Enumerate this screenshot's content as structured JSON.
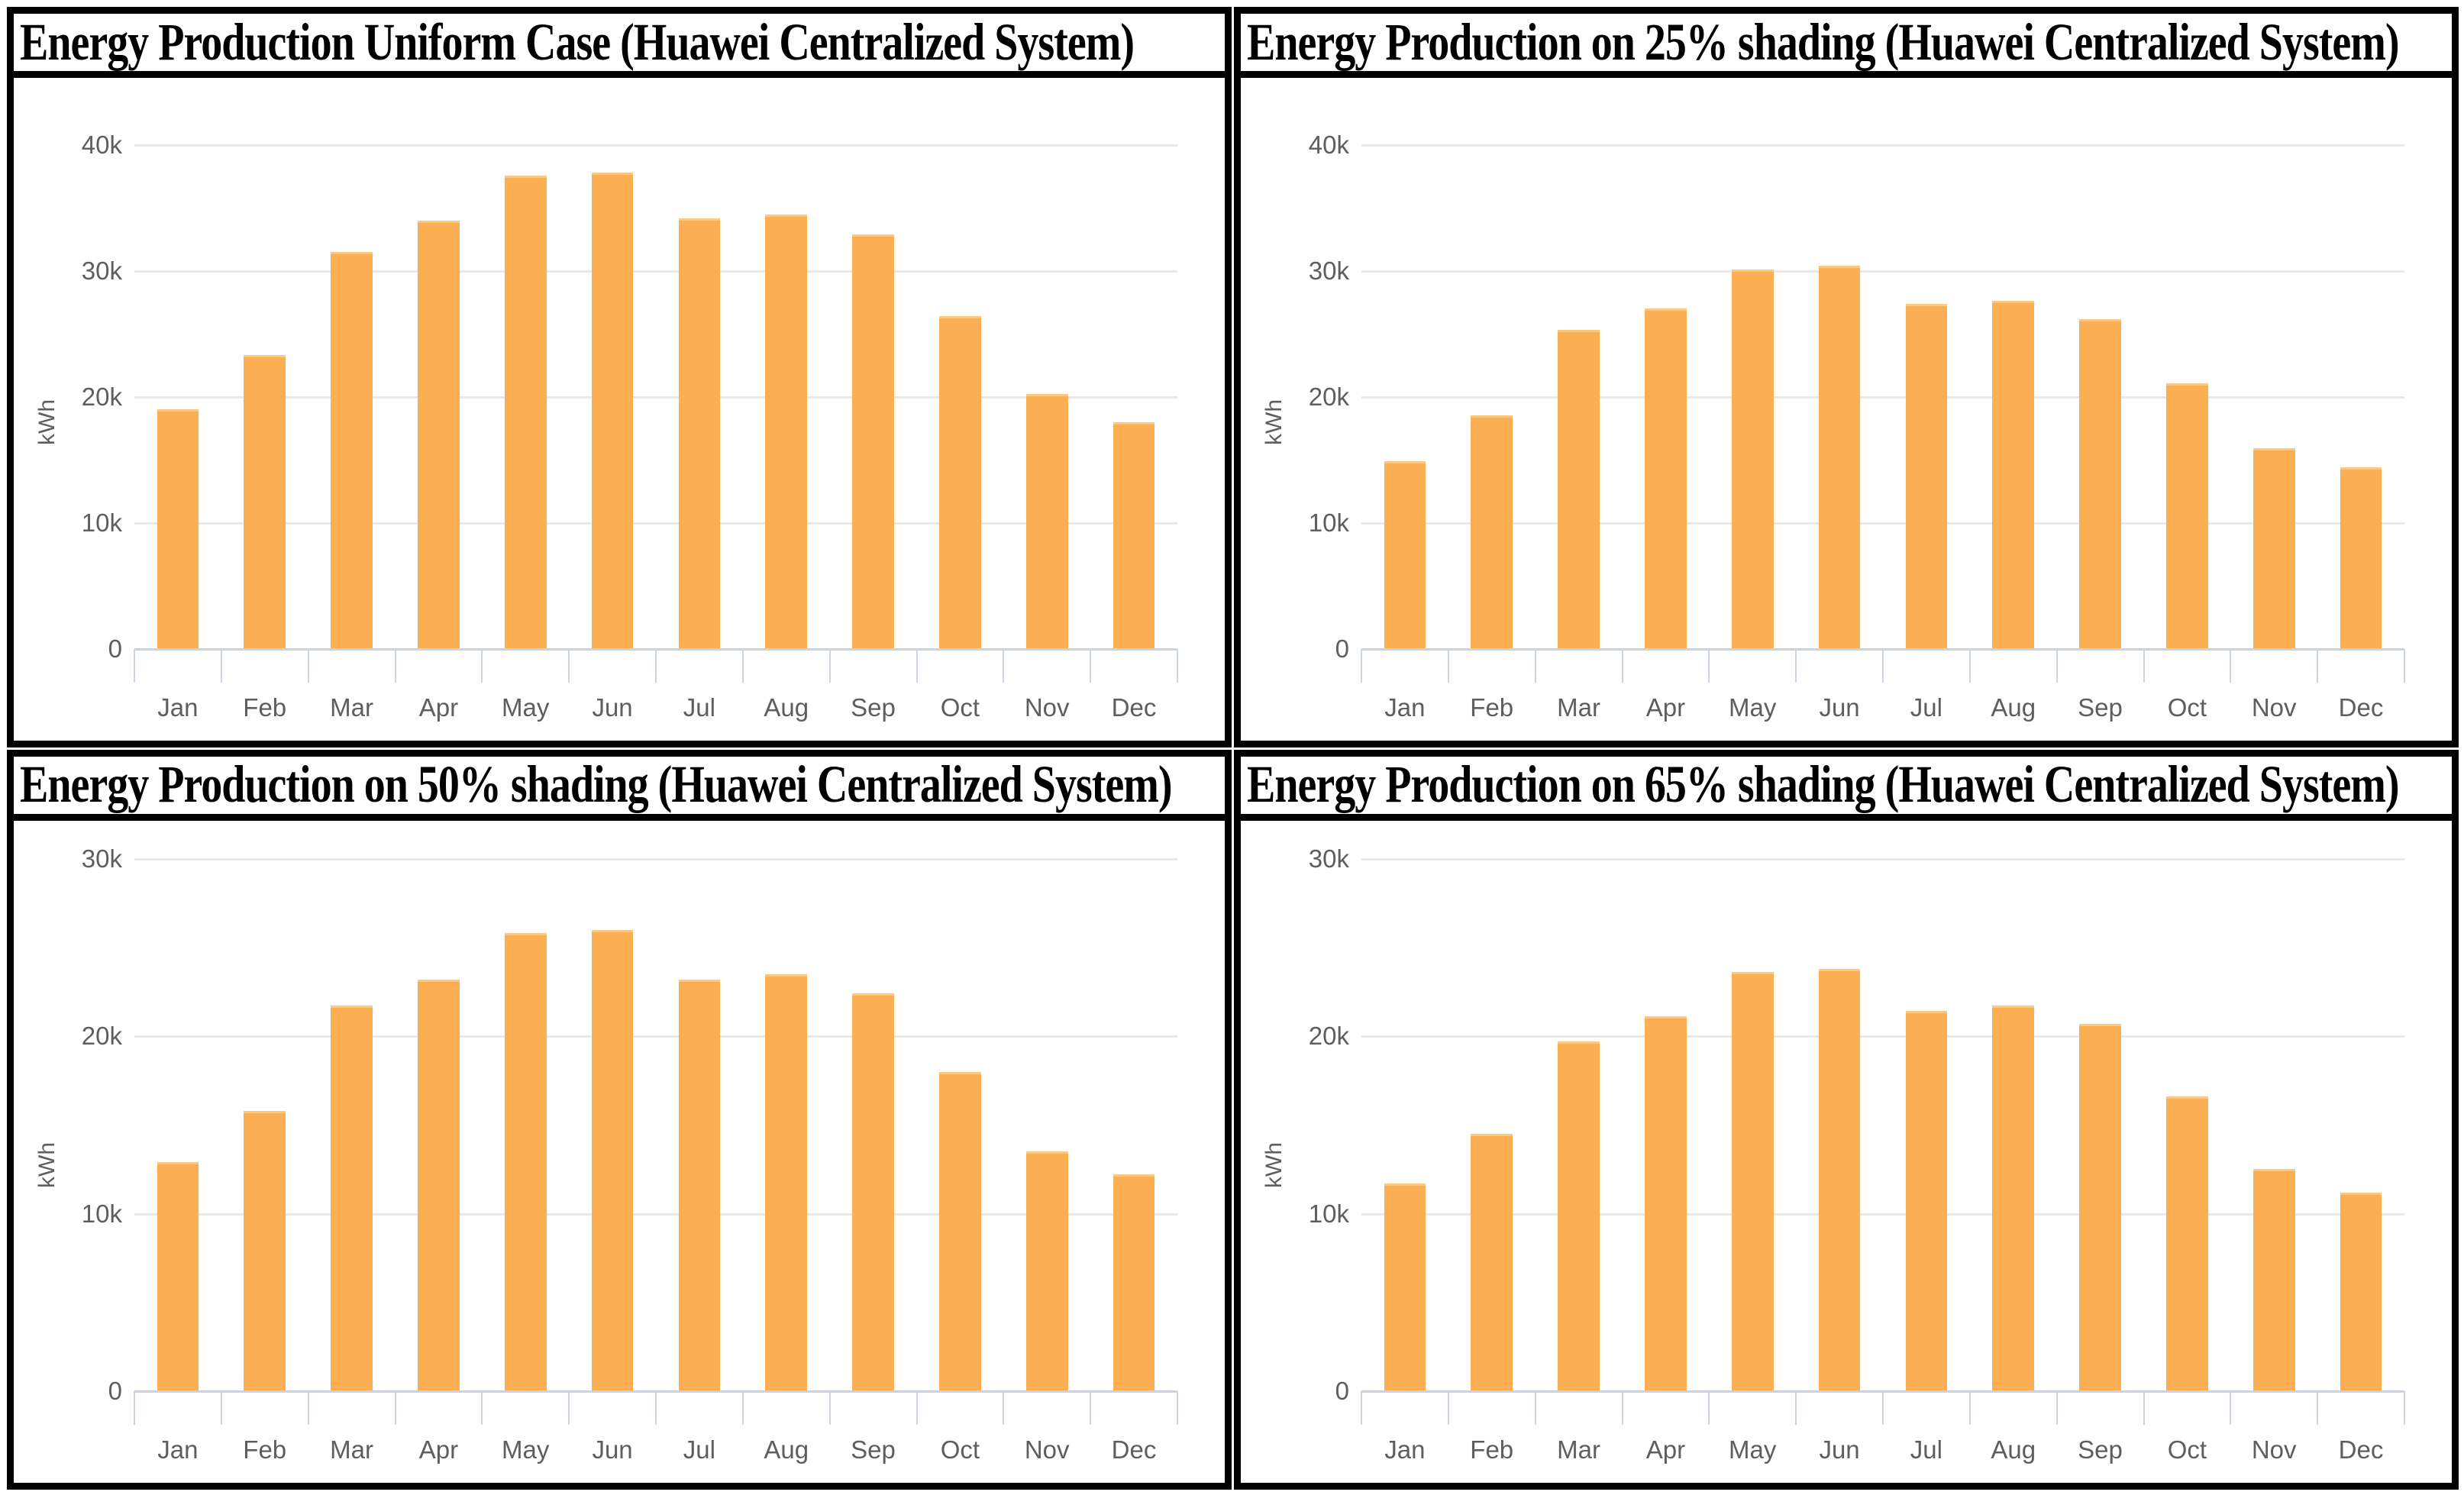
{
  "colors": {
    "bar_fill": "#fbaf52",
    "bar_top_highlight": "#fcc87e",
    "gridline": "#e9e9e9",
    "axis_line": "#c9d3df",
    "axis_text": "#605e5c",
    "title_text": "#000000",
    "panel_border": "#000000",
    "background": "#ffffff"
  },
  "chart_data": [
    {
      "type": "bar",
      "title": "Energy Production Uniform Case (Huawei Centralized System)",
      "xlabel": "",
      "ylabel": "kWh",
      "categories": [
        "Jan",
        "Feb",
        "Mar",
        "Apr",
        "May",
        "Jun",
        "Jul",
        "Aug",
        "Sep",
        "Oct",
        "Nov",
        "Dec"
      ],
      "values": [
        19000,
        23300,
        31500,
        34000,
        37600,
        37800,
        34200,
        34500,
        32900,
        26400,
        20200,
        18000
      ],
      "ylim": [
        0,
        40000
      ],
      "yticks": [
        {
          "value": 0,
          "label": "0"
        },
        {
          "value": 10000,
          "label": "10k"
        },
        {
          "value": 20000,
          "label": "20k"
        },
        {
          "value": 30000,
          "label": "30k"
        },
        {
          "value": 40000,
          "label": "40k"
        }
      ],
      "grid": true,
      "legend": "none"
    },
    {
      "type": "bar",
      "title": "Energy Production on 25% shading (Huawei Centralized System)",
      "xlabel": "",
      "ylabel": "kWh",
      "categories": [
        "Jan",
        "Feb",
        "Mar",
        "Apr",
        "May",
        "Jun",
        "Jul",
        "Aug",
        "Sep",
        "Oct",
        "Nov",
        "Dec"
      ],
      "values": [
        14900,
        18500,
        25300,
        27000,
        30100,
        30400,
        27400,
        27600,
        26200,
        21100,
        15900,
        14400
      ],
      "ylim": [
        0,
        40000
      ],
      "yticks": [
        {
          "value": 0,
          "label": "0"
        },
        {
          "value": 10000,
          "label": "10k"
        },
        {
          "value": 20000,
          "label": "20k"
        },
        {
          "value": 30000,
          "label": "30k"
        },
        {
          "value": 40000,
          "label": "40k"
        }
      ],
      "grid": true,
      "legend": "none"
    },
    {
      "type": "bar",
      "title": "Energy Production on 50% shading (Huawei Centralized System)",
      "xlabel": "",
      "ylabel": "kWh",
      "categories": [
        "Jan",
        "Feb",
        "Mar",
        "Apr",
        "May",
        "Jun",
        "Jul",
        "Aug",
        "Sep",
        "Oct",
        "Nov",
        "Dec"
      ],
      "values": [
        12900,
        15800,
        21700,
        23200,
        25800,
        26000,
        23200,
        23500,
        22400,
        18000,
        13500,
        12200
      ],
      "ylim": [
        0,
        30000
      ],
      "yticks": [
        {
          "value": 0,
          "label": "0"
        },
        {
          "value": 10000,
          "label": "10k"
        },
        {
          "value": 20000,
          "label": "20k"
        },
        {
          "value": 30000,
          "label": "30k"
        }
      ],
      "grid": true,
      "legend": "none"
    },
    {
      "type": "bar",
      "title": "Energy Production on 65% shading (Huawei Centralized System)",
      "xlabel": "",
      "ylabel": "kWh",
      "categories": [
        "Jan",
        "Feb",
        "Mar",
        "Apr",
        "May",
        "Jun",
        "Jul",
        "Aug",
        "Sep",
        "Oct",
        "Nov",
        "Dec"
      ],
      "values": [
        11700,
        14500,
        19700,
        21100,
        23600,
        23800,
        21400,
        21700,
        20700,
        16600,
        12500,
        11200
      ],
      "ylim": [
        0,
        30000
      ],
      "yticks": [
        {
          "value": 0,
          "label": "0"
        },
        {
          "value": 10000,
          "label": "10k"
        },
        {
          "value": 20000,
          "label": "20k"
        },
        {
          "value": 30000,
          "label": "30k"
        }
      ],
      "grid": true,
      "legend": "none"
    }
  ]
}
